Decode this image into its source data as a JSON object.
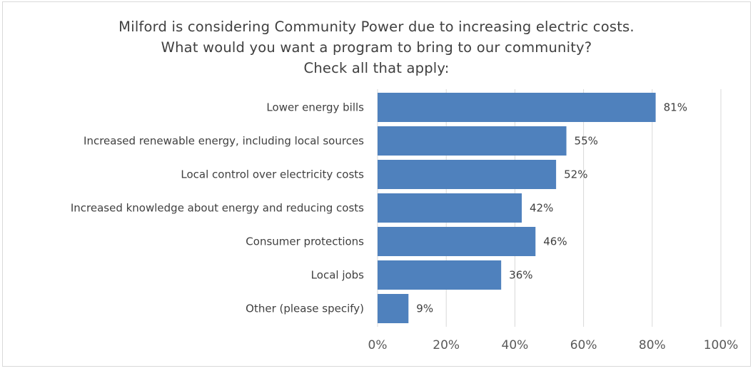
{
  "chart_data": {
    "type": "bar",
    "orientation": "horizontal",
    "title_lines": [
      "Milford is considering Community Power due to increasing electric costs.",
      "What would you want a program to bring to our community?",
      "Check all that apply:"
    ],
    "categories": [
      "Lower energy bills",
      "Increased renewable energy, including local sources",
      "Local control over electricity costs",
      "Increased knowledge about energy and reducing costs",
      "Consumer protections",
      "Local jobs",
      "Other (please specify)"
    ],
    "values": [
      81,
      55,
      52,
      42,
      46,
      36,
      9
    ],
    "data_labels": [
      "81%",
      "55%",
      "52%",
      "42%",
      "46%",
      "36%",
      "9%"
    ],
    "xlim": [
      0,
      100
    ],
    "x_ticks": [
      0,
      20,
      40,
      60,
      80,
      100
    ],
    "x_tick_labels": [
      "0%",
      "20%",
      "40%",
      "60%",
      "80%",
      "100%"
    ],
    "grid": true,
    "legend": "none",
    "bar_color": "#4f81bd"
  }
}
